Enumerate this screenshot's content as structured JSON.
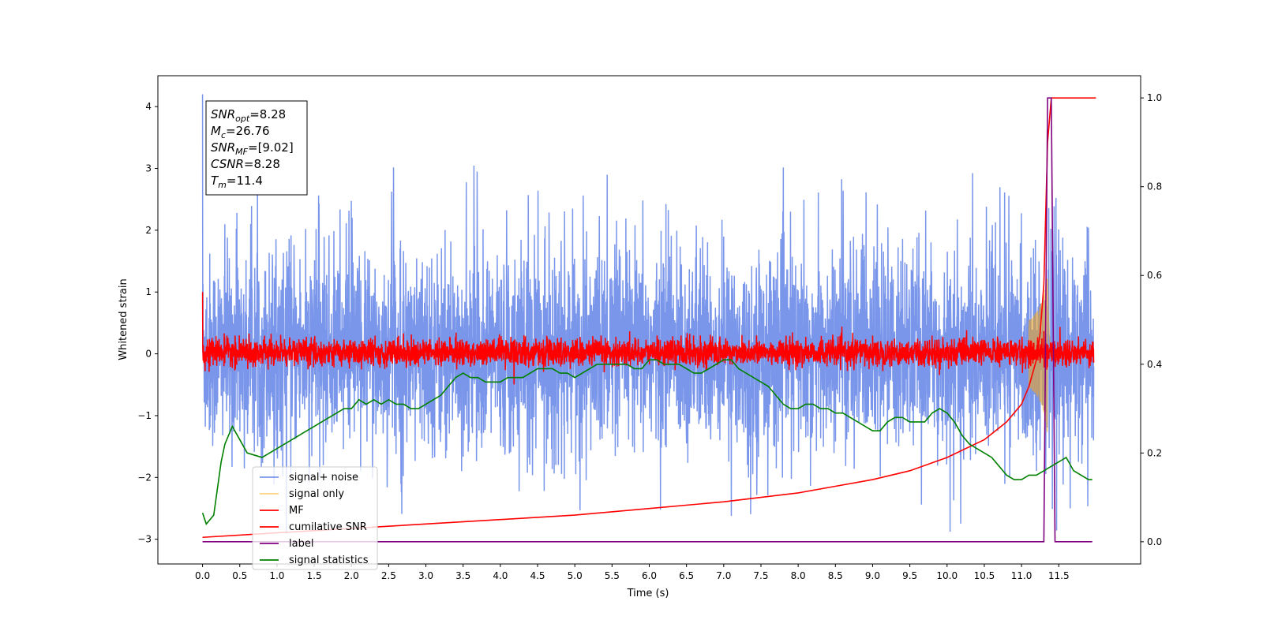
{
  "chart_data": {
    "type": "line",
    "title": "",
    "xlabel": "Time (s)",
    "ylabel": "Whitened strain",
    "xlim": [
      -0.6,
      12.6
    ],
    "ylim": [
      -3.4,
      4.5
    ],
    "y2lim": [
      -0.05,
      1.05
    ],
    "grid": false,
    "legend_position": "lower-left",
    "x_ticks": [
      "0.0",
      "0.5",
      "1.0",
      "1.5",
      "2.0",
      "2.5",
      "3.0",
      "3.5",
      "4.0",
      "4.5",
      "5.0",
      "5.5",
      "6.0",
      "6.5",
      "7.0",
      "7.5",
      "8.0",
      "8.5",
      "9.0",
      "9.5",
      "10.0",
      "10.5",
      "11.0",
      "11.5"
    ],
    "y_ticks": [
      -3,
      -2,
      -1,
      0,
      1,
      2,
      3,
      4
    ],
    "y2_ticks": [
      "0.0",
      "0.2",
      "0.4",
      "0.6",
      "0.8",
      "1.0"
    ],
    "annotation": {
      "lines": [
        {
          "name": "SNR",
          "sub": "opt",
          "value": "=8.28"
        },
        {
          "name": "M",
          "sub": "c",
          "value": "=26.76"
        },
        {
          "name": "SNR",
          "sub": "MF",
          "value": "=[9.02]"
        },
        {
          "name": "CSNR",
          "sub": "",
          "value": "=8.28"
        },
        {
          "name": "T",
          "sub": "m",
          "value": "=11.4"
        }
      ]
    },
    "series": [
      {
        "name": "signal+ noise",
        "color": "#4169e1",
        "axis": "left",
        "kind": "noise",
        "band": [
          -1.2,
          1.3
        ],
        "peak_range": [
          -3.0,
          4.2
        ]
      },
      {
        "name": "signal only",
        "color": "#ffa500",
        "axis": "left",
        "kind": "chirp",
        "merger_time": 11.35
      },
      {
        "name": "MF",
        "color": "#ff0000",
        "axis": "left",
        "kind": "noise",
        "band": [
          -0.15,
          0.2
        ]
      },
      {
        "name": "cumilative SNR",
        "color": "#ff0000",
        "axis": "right",
        "x": [
          0.0,
          1.0,
          2.0,
          3.0,
          4.0,
          5.0,
          6.0,
          7.0,
          7.5,
          8.0,
          8.5,
          9.0,
          9.5,
          10.0,
          10.5,
          10.8,
          11.0,
          11.1,
          11.2,
          11.25,
          11.3,
          11.35,
          11.4,
          11.45,
          11.5,
          12.0
        ],
        "y": [
          0.01,
          0.02,
          0.03,
          0.04,
          0.05,
          0.06,
          0.075,
          0.09,
          0.1,
          0.11,
          0.125,
          0.14,
          0.16,
          0.19,
          0.23,
          0.27,
          0.31,
          0.35,
          0.41,
          0.47,
          0.58,
          0.9,
          1.0,
          1.0,
          1.0,
          1.0
        ]
      },
      {
        "name": "label",
        "color": "#800080",
        "axis": "right",
        "x": [
          0.0,
          11.3,
          11.35,
          11.4,
          11.45,
          11.95
        ],
        "y": [
          0.0,
          0.0,
          1.0,
          1.0,
          0.0,
          0.0
        ]
      },
      {
        "name": "signal statistics",
        "color": "#008000",
        "axis": "right",
        "x": [
          0.0,
          0.05,
          0.15,
          0.25,
          0.3,
          0.4,
          0.5,
          0.6,
          0.8,
          0.9,
          1.0,
          1.1,
          1.2,
          1.3,
          1.5,
          1.6,
          1.7,
          1.8,
          1.9,
          2.0,
          2.1,
          2.2,
          2.3,
          2.4,
          2.5,
          2.6,
          2.7,
          2.8,
          2.9,
          3.0,
          3.1,
          3.2,
          3.3,
          3.4,
          3.5,
          3.6,
          3.7,
          3.8,
          3.9,
          4.0,
          4.1,
          4.2,
          4.3,
          4.4,
          4.5,
          4.6,
          4.7,
          4.8,
          4.9,
          5.0,
          5.1,
          5.2,
          5.3,
          5.4,
          5.5,
          5.6,
          5.7,
          5.8,
          5.9,
          6.0,
          6.1,
          6.2,
          6.3,
          6.4,
          6.5,
          6.6,
          6.7,
          6.8,
          6.9,
          7.0,
          7.1,
          7.2,
          7.3,
          7.4,
          7.5,
          7.6,
          7.7,
          7.8,
          7.9,
          8.0,
          8.1,
          8.2,
          8.3,
          8.4,
          8.5,
          8.6,
          8.7,
          8.8,
          8.9,
          9.0,
          9.1,
          9.2,
          9.3,
          9.4,
          9.5,
          9.6,
          9.7,
          9.8,
          9.9,
          10.0,
          10.1,
          10.2,
          10.3,
          10.4,
          10.5,
          10.6,
          10.7,
          10.8,
          10.9,
          11.0,
          11.1,
          11.2,
          11.3,
          11.4,
          11.5,
          11.6,
          11.7,
          11.8,
          11.9,
          11.95
        ],
        "y": [
          0.065,
          0.04,
          0.06,
          0.18,
          0.22,
          0.26,
          0.23,
          0.2,
          0.19,
          0.2,
          0.21,
          0.22,
          0.23,
          0.24,
          0.26,
          0.27,
          0.28,
          0.29,
          0.3,
          0.3,
          0.32,
          0.31,
          0.32,
          0.31,
          0.32,
          0.31,
          0.31,
          0.3,
          0.3,
          0.31,
          0.32,
          0.33,
          0.35,
          0.37,
          0.38,
          0.37,
          0.37,
          0.36,
          0.36,
          0.36,
          0.37,
          0.37,
          0.37,
          0.38,
          0.39,
          0.39,
          0.39,
          0.38,
          0.38,
          0.37,
          0.38,
          0.39,
          0.4,
          0.4,
          0.4,
          0.4,
          0.4,
          0.39,
          0.39,
          0.41,
          0.41,
          0.4,
          0.4,
          0.4,
          0.39,
          0.38,
          0.38,
          0.39,
          0.4,
          0.41,
          0.41,
          0.39,
          0.38,
          0.37,
          0.36,
          0.35,
          0.33,
          0.31,
          0.3,
          0.3,
          0.31,
          0.31,
          0.3,
          0.3,
          0.29,
          0.29,
          0.28,
          0.27,
          0.26,
          0.25,
          0.25,
          0.27,
          0.28,
          0.28,
          0.27,
          0.27,
          0.27,
          0.29,
          0.3,
          0.29,
          0.27,
          0.24,
          0.22,
          0.21,
          0.2,
          0.19,
          0.17,
          0.15,
          0.14,
          0.14,
          0.15,
          0.15,
          0.16,
          0.17,
          0.18,
          0.19,
          0.16,
          0.15,
          0.14,
          0.14
        ]
      }
    ]
  }
}
